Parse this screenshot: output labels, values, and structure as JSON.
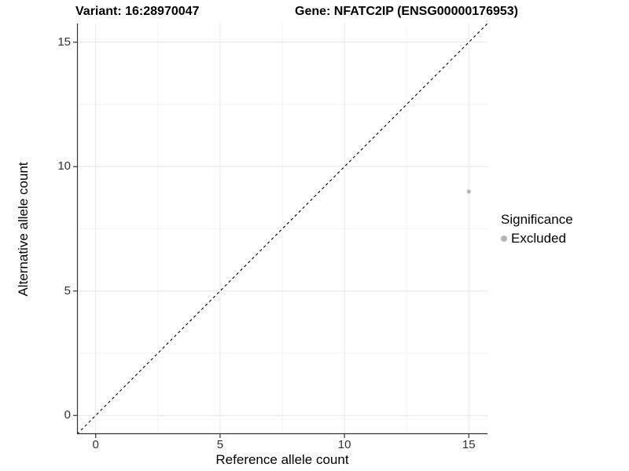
{
  "header": {
    "variant_title": "Variant: 16:28970047",
    "gene_title": "Gene: NFATC2IP (ENSG00000176953)"
  },
  "chart_data": {
    "type": "scatter",
    "title": "Variant: 16:28970047   Gene: NFATC2IP (ENSG00000176953)",
    "xlabel": "Reference allele count",
    "ylabel": "Alternative allele count",
    "xlim": [
      -0.75,
      15.75
    ],
    "ylim": [
      -0.75,
      15.75
    ],
    "xticks": [
      0,
      5,
      10,
      15
    ],
    "yticks": [
      0,
      5,
      10,
      15
    ],
    "xminor": [
      2.5,
      7.5,
      12.5
    ],
    "yminor": [
      2.5,
      7.5,
      12.5
    ],
    "grid": "major-and-minor",
    "points": [
      {
        "x": 15,
        "y": 9,
        "series": "Excluded"
      }
    ],
    "identity_line": {
      "style": "dashed",
      "color": "#000000",
      "slope": 1,
      "intercept": 0
    },
    "legend": {
      "title": "Significance",
      "position": "right-middle",
      "items": [
        {
          "label": "Excluded",
          "marker": "circle",
          "color": "#b5b5b5"
        }
      ]
    }
  },
  "colors": {
    "background": "#ffffff",
    "axis_line": "#333333",
    "tick_mark": "#333333",
    "tick_text": "#303030",
    "grid_major": "#e6e6e6",
    "grid_minor": "#f2f2f2",
    "point_excluded": "#b5b5b5",
    "dashed_line": "#000000"
  }
}
